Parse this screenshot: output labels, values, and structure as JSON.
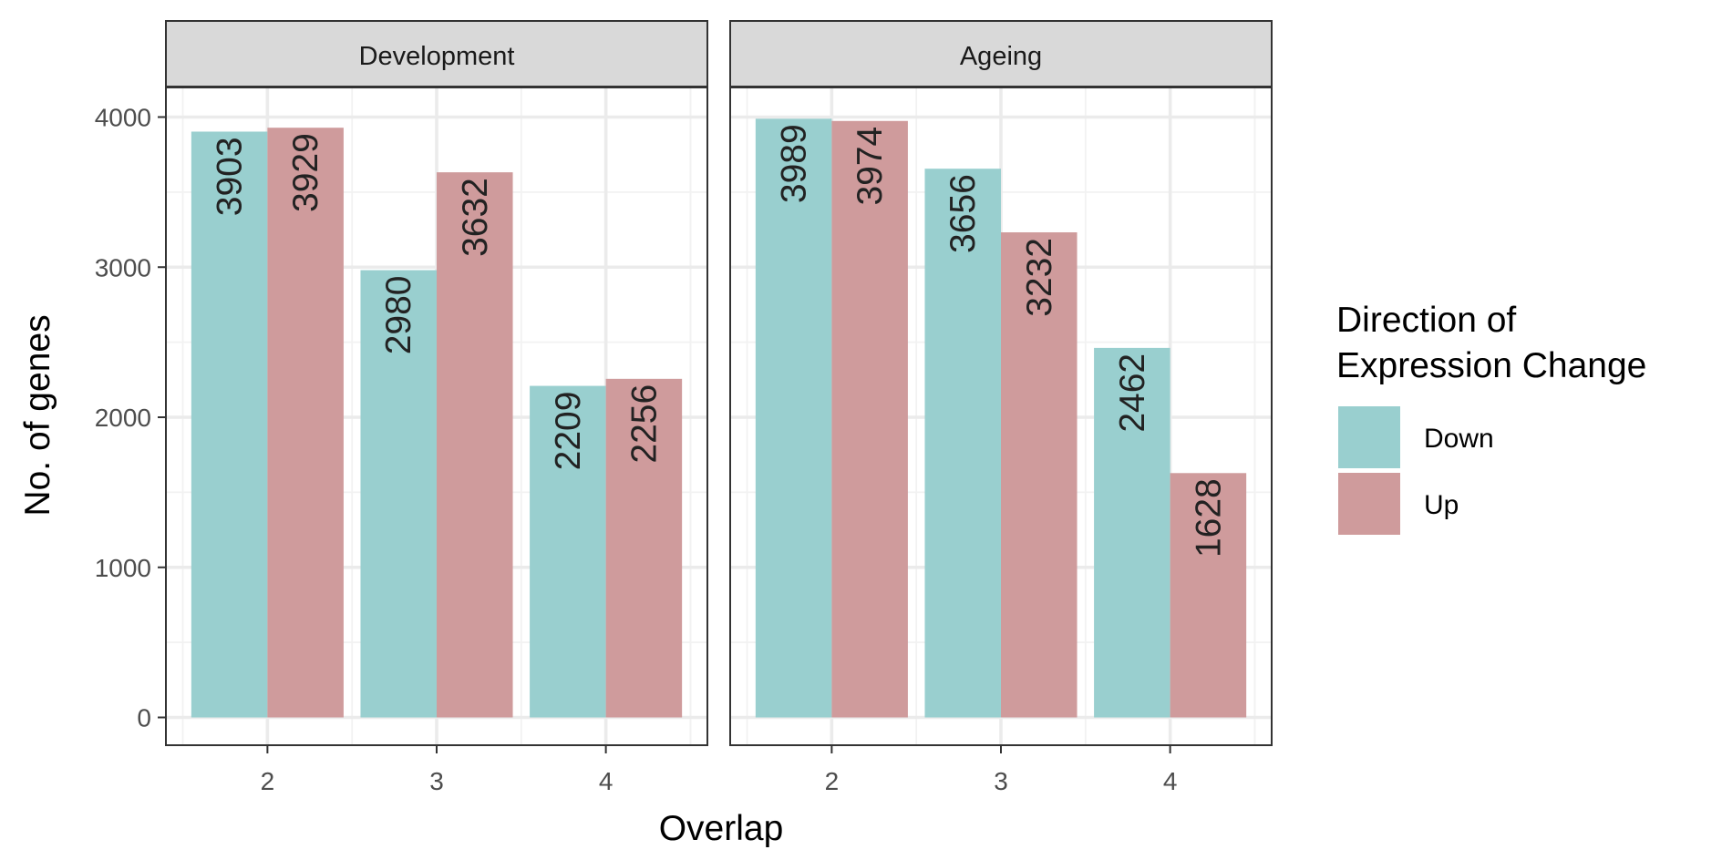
{
  "chart_data": {
    "type": "bar",
    "xlabel": "Overlap",
    "ylabel": "No. of genes",
    "ylim": [
      0,
      4200
    ],
    "yticks": [
      0,
      1000,
      2000,
      3000,
      4000
    ],
    "categories": [
      "2",
      "3",
      "4"
    ],
    "grid": true,
    "legend": {
      "title_lines": [
        "Direction of",
        "Expression Change"
      ],
      "placement": "right",
      "entries": [
        {
          "name": "Down",
          "color": "#99CFCF"
        },
        {
          "name": "Up",
          "color": "#CF9B9C"
        }
      ]
    },
    "panels": [
      {
        "title": "Development",
        "series": [
          {
            "name": "Down",
            "values": [
              3903,
              2980,
              2209
            ]
          },
          {
            "name": "Up",
            "values": [
              3929,
              3632,
              2256
            ]
          }
        ]
      },
      {
        "title": "Ageing",
        "series": [
          {
            "name": "Down",
            "values": [
              3989,
              3656,
              2462
            ]
          },
          {
            "name": "Up",
            "values": [
              3974,
              3232,
              1628
            ]
          }
        ]
      }
    ]
  }
}
